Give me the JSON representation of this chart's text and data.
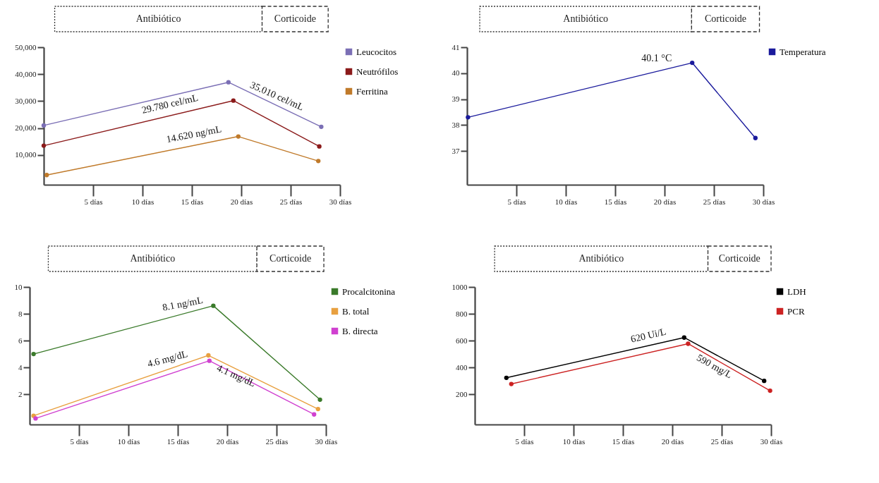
{
  "chart_data": [
    {
      "type": "line",
      "xlim": [
        0,
        30
      ],
      "ylim": [
        -1000,
        50000
      ],
      "xticks": [
        {
          "value": 5,
          "label": "5 días"
        },
        {
          "value": 10,
          "label": "10 días"
        },
        {
          "value": 15,
          "label": "15 días"
        },
        {
          "value": 20,
          "label": "20 días"
        },
        {
          "value": 25,
          "label": "25 días"
        },
        {
          "value": 30,
          "label": "30 días"
        }
      ],
      "yticks": [
        {
          "value": 10000,
          "label": "10,000"
        },
        {
          "value": 20000,
          "label": "20,000"
        },
        {
          "value": 30000,
          "label": "30,000"
        },
        {
          "value": 40000,
          "label": "40,000"
        },
        {
          "value": 50000,
          "label": "50,000"
        }
      ],
      "series": [
        {
          "name": "Leucocitos",
          "color": "#7b6fb5",
          "x": [
            0,
            18.7,
            28.1
          ],
          "values": [
            21000,
            37000,
            20500
          ]
        },
        {
          "name": "Neutrófilos",
          "color": "#8b1a1a",
          "x": [
            0,
            19.2,
            27.9
          ],
          "values": [
            13500,
            30200,
            13200
          ]
        },
        {
          "name": "Ferritina",
          "color": "#c07a2a",
          "x": [
            0.3,
            19.7,
            27.8
          ],
          "values": [
            2600,
            16900,
            7800
          ]
        }
      ],
      "annotations": [
        "Antibiótico",
        "Corticoide",
        "29.780 cel/mL",
        "35.010 cel/mL",
        "14.620 ng/mL"
      ],
      "legend": "top right",
      "marker": "circle"
    },
    {
      "type": "line",
      "xlim": [
        0,
        30
      ],
      "ylim": [
        35.7,
        41
      ],
      "xticks": [
        {
          "value": 5,
          "label": "5 días"
        },
        {
          "value": 10,
          "label": "10 días"
        },
        {
          "value": 15,
          "label": "15 días"
        },
        {
          "value": 20,
          "label": "20 días"
        },
        {
          "value": 25,
          "label": "25 días"
        },
        {
          "value": 30,
          "label": "30 días"
        }
      ],
      "yticks": [
        37,
        38,
        39,
        40,
        41
      ],
      "series": [
        {
          "name": "Temperatura",
          "color": "#1a1a9c",
          "x": [
            0.1,
            22.8,
            29.2
          ],
          "values": [
            38.3,
            40.4,
            37.5
          ]
        }
      ],
      "annotations": [
        "Antibiótico",
        "Corticoide",
        "40.1 °C"
      ],
      "legend": "top right",
      "marker": "circle"
    },
    {
      "type": "line",
      "xlim": [
        0,
        30
      ],
      "ylim": [
        -0.25,
        10
      ],
      "xticks": [
        {
          "value": 5,
          "label": "5 días"
        },
        {
          "value": 10,
          "label": "10 días"
        },
        {
          "value": 15,
          "label": "15 días"
        },
        {
          "value": 20,
          "label": "20 días"
        },
        {
          "value": 25,
          "label": "25 días"
        },
        {
          "value": 30,
          "label": "30 días"
        }
      ],
      "yticks": [
        2,
        4,
        6,
        8,
        10
      ],
      "series": [
        {
          "name": "Procalcitonina",
          "color": "#3a7a2a",
          "x": [
            0.4,
            18.6,
            29.4
          ],
          "values": [
            5.0,
            8.6,
            1.6
          ]
        },
        {
          "name": "B. total",
          "color": "#e8a040",
          "x": [
            0.4,
            18.1,
            29.2
          ],
          "values": [
            0.4,
            4.9,
            0.9
          ]
        },
        {
          "name": "B. directa",
          "color": "#d040d0",
          "x": [
            0.6,
            18.2,
            28.8
          ],
          "values": [
            0.2,
            4.5,
            0.5
          ]
        }
      ],
      "annotations": [
        "Antibiótico",
        "Corticoide",
        "8.1 ng/mL",
        "4.6 mg/dL",
        "4.1  mg/dL"
      ],
      "legend": "top right",
      "marker": "circle"
    },
    {
      "type": "line",
      "xlim": [
        0,
        30
      ],
      "ylim": [
        -25,
        1000
      ],
      "xticks": [
        {
          "value": 5,
          "label": "5 días"
        },
        {
          "value": 10,
          "label": "10 días"
        },
        {
          "value": 15,
          "label": "15 días"
        },
        {
          "value": 20,
          "label": "20 días"
        },
        {
          "value": 25,
          "label": "25 días"
        },
        {
          "value": 30,
          "label": "30 días"
        }
      ],
      "yticks": [
        200,
        400,
        600,
        800,
        1000
      ],
      "series": [
        {
          "name": "LDH",
          "color": "#000000",
          "x": [
            3.2,
            21.2,
            29.3
          ],
          "values": [
            323,
            623,
            300
          ]
        },
        {
          "name": "PCR",
          "color": "#cc2222",
          "x": [
            3.7,
            21.6,
            29.9
          ],
          "values": [
            277,
            577,
            227
          ]
        }
      ],
      "annotations": [
        "Antibiótico",
        "Corticoide",
        "620 Ui/L",
        "590 mg/L"
      ],
      "legend": "top right",
      "marker": "circle"
    }
  ]
}
